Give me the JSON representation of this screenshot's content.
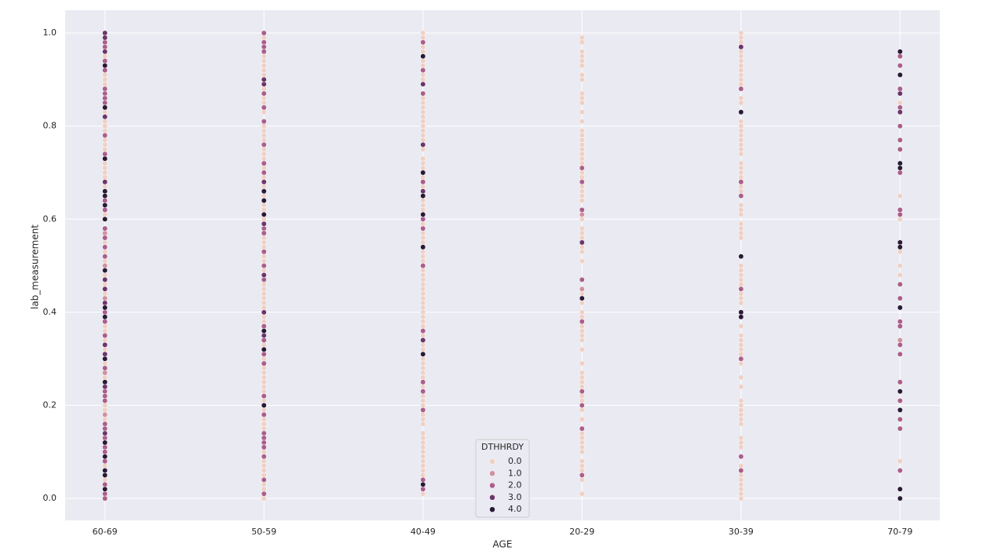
{
  "chart_data": {
    "type": "scatter",
    "x_label": "AGE",
    "y_label": "lab_measurement",
    "categories": [
      "60-69",
      "50-59",
      "40-49",
      "20-29",
      "30-39",
      "70-79"
    ],
    "ylim": [
      -0.047,
      1.049
    ],
    "yticks": [
      {
        "value": 0,
        "label": "0.0"
      },
      {
        "value": 0.2,
        "label": "0.2"
      },
      {
        "value": 0.4,
        "label": "0.4"
      },
      {
        "value": 0.6,
        "label": "0.6"
      },
      {
        "value": 0.8,
        "label": "0.8"
      },
      {
        "value": 1,
        "label": "1.0"
      }
    ],
    "grid": true,
    "legend_title": "DTHHRDY",
    "legend_position": "lower center",
    "series": [
      {
        "name": "0.0",
        "color": "#efd0c4",
        "values": [
          [
            0.95,
            0.91,
            0.9,
            0.89,
            0.83,
            0.81,
            0.8,
            0.79,
            0.77,
            0.76,
            0.75,
            0.72,
            0.71,
            0.7,
            0.69,
            0.67,
            0.61,
            0.55,
            0.53,
            0.51,
            0.48,
            0.46,
            0.44,
            0.37,
            0.36,
            0.34,
            0.32,
            0.29,
            0.26,
            0.2,
            0.19,
            0.18,
            0.17,
            0.07,
            0.04
          ],
          [
            0.99,
            0.95,
            0.94,
            0.93,
            0.92,
            0.91,
            0.88,
            0.86,
            0.85,
            0.83,
            0.8,
            0.79,
            0.78,
            0.77,
            0.75,
            0.74,
            0.73,
            0.71,
            0.69,
            0.67,
            0.65,
            0.63,
            0.62,
            0.6,
            0.56,
            0.55,
            0.54,
            0.52,
            0.51,
            0.49,
            0.46,
            0.45,
            0.44,
            0.43,
            0.42,
            0.41,
            0.39,
            0.38,
            0.33,
            0.3,
            0.28,
            0.27,
            0.26,
            0.25,
            0.24,
            0.23,
            0.21,
            0.19,
            0.17,
            0.16,
            0.15,
            0.1,
            0.08,
            0.07,
            0.06,
            0.05,
            0.03,
            0.02,
            0.0
          ],
          [
            1.0,
            0.99,
            0.97,
            0.96,
            0.94,
            0.93,
            0.91,
            0.9,
            0.86,
            0.85,
            0.84,
            0.83,
            0.82,
            0.81,
            0.8,
            0.79,
            0.78,
            0.77,
            0.75,
            0.73,
            0.72,
            0.71,
            0.69,
            0.67,
            0.64,
            0.63,
            0.62,
            0.59,
            0.57,
            0.56,
            0.55,
            0.53,
            0.52,
            0.51,
            0.49,
            0.48,
            0.47,
            0.46,
            0.45,
            0.44,
            0.43,
            0.42,
            0.41,
            0.4,
            0.39,
            0.38,
            0.37,
            0.35,
            0.33,
            0.32,
            0.3,
            0.29,
            0.28,
            0.27,
            0.26,
            0.24,
            0.22,
            0.21,
            0.2,
            0.18,
            0.17,
            0.16,
            0.14,
            0.13,
            0.12,
            0.11,
            0.1,
            0.09,
            0.08,
            0.07,
            0.06,
            0.05,
            0.01
          ],
          [
            0.99,
            0.98,
            0.96,
            0.95,
            0.94,
            0.93,
            0.91,
            0.9,
            0.87,
            0.86,
            0.85,
            0.83,
            0.81,
            0.79,
            0.78,
            0.77,
            0.76,
            0.75,
            0.74,
            0.73,
            0.72,
            0.7,
            0.69,
            0.67,
            0.66,
            0.65,
            0.64,
            0.6,
            0.58,
            0.57,
            0.56,
            0.54,
            0.53,
            0.51,
            0.44,
            0.42,
            0.4,
            0.39,
            0.37,
            0.36,
            0.35,
            0.34,
            0.32,
            0.29,
            0.27,
            0.26,
            0.25,
            0.24,
            0.22,
            0.21,
            0.19,
            0.17,
            0.14,
            0.13,
            0.12,
            0.11,
            0.1,
            0.08,
            0.07,
            0.06,
            0.04,
            0.01
          ],
          [
            1.0,
            0.99,
            0.98,
            0.96,
            0.95,
            0.94,
            0.93,
            0.92,
            0.91,
            0.9,
            0.89,
            0.86,
            0.85,
            0.81,
            0.8,
            0.79,
            0.78,
            0.77,
            0.76,
            0.75,
            0.74,
            0.72,
            0.71,
            0.7,
            0.69,
            0.67,
            0.66,
            0.63,
            0.62,
            0.61,
            0.59,
            0.58,
            0.57,
            0.56,
            0.5,
            0.49,
            0.48,
            0.47,
            0.46,
            0.44,
            0.43,
            0.42,
            0.37,
            0.35,
            0.34,
            0.33,
            0.32,
            0.31,
            0.29,
            0.26,
            0.24,
            0.21,
            0.2,
            0.19,
            0.18,
            0.17,
            0.16,
            0.13,
            0.12,
            0.11,
            0.07,
            0.05,
            0.04,
            0.03,
            0.02,
            0.01,
            0.0
          ],
          [
            0.85,
            0.65,
            0.6,
            0.53,
            0.5,
            0.48,
            0.08
          ]
        ]
      },
      {
        "name": "1.0",
        "color": "#d0919f",
        "values": [
          [
            0.57,
            0.5,
            0.43,
            0.27,
            0.18
          ],
          [],
          [],
          [
            0.61,
            0.45
          ],
          [],
          [
            0.34
          ]
        ]
      },
      {
        "name": "2.0",
        "color": "#ab5e8a",
        "values": [
          [
            0.98,
            0.97,
            0.94,
            0.92,
            0.88,
            0.87,
            0.86,
            0.85,
            0.78,
            0.74,
            0.64,
            0.62,
            0.58,
            0.56,
            0.54,
            0.52,
            0.4,
            0.38,
            0.35,
            0.28,
            0.23,
            0.22,
            0.21,
            0.16,
            0.15,
            0.13,
            0.11,
            0.1,
            0.08,
            0.03,
            0.01,
            0.0
          ],
          [
            1.0,
            0.98,
            0.97,
            0.96,
            0.87,
            0.84,
            0.81,
            0.76,
            0.72,
            0.7,
            0.58,
            0.57,
            0.53,
            0.5,
            0.47,
            0.37,
            0.34,
            0.31,
            0.29,
            0.22,
            0.18,
            0.14,
            0.13,
            0.12,
            0.11,
            0.09,
            0.04,
            0.01
          ],
          [
            0.98,
            0.92,
            0.87,
            0.68,
            0.6,
            0.58,
            0.5,
            0.36,
            0.25,
            0.23,
            0.19,
            0.04,
            0.02
          ],
          [
            0.71,
            0.68,
            0.62,
            0.47,
            0.38,
            0.23,
            0.2,
            0.15,
            0.05
          ],
          [
            0.88,
            0.68,
            0.65,
            0.45,
            0.3,
            0.09,
            0.06
          ],
          [
            0.95,
            0.93,
            0.88,
            0.84,
            0.8,
            0.77,
            0.75,
            0.7,
            0.62,
            0.61,
            0.46,
            0.43,
            0.38,
            0.37,
            0.33,
            0.31,
            0.25,
            0.21,
            0.17,
            0.15,
            0.06
          ]
        ]
      },
      {
        "name": "3.0",
        "color": "#6c3569",
        "values": [
          [
            1.0,
            0.99,
            0.96,
            0.82,
            0.68,
            0.47,
            0.45,
            0.42,
            0.33,
            0.31,
            0.24,
            0.14
          ],
          [
            0.9,
            0.89,
            0.68,
            0.59,
            0.48,
            0.4,
            0.35
          ],
          [
            0.89,
            0.76,
            0.66,
            0.34
          ],
          [
            0.55
          ],
          [
            0.97
          ],
          [
            0.87,
            0.83
          ]
        ]
      },
      {
        "name": "4.0",
        "color": "#2a1a35",
        "values": [
          [
            0.93,
            0.84,
            0.73,
            0.66,
            0.65,
            0.63,
            0.6,
            0.49,
            0.41,
            0.39,
            0.3,
            0.25,
            0.12,
            0.09,
            0.06,
            0.05,
            0.02
          ],
          [
            0.66,
            0.64,
            0.61,
            0.36,
            0.32,
            0.2
          ],
          [
            0.95,
            0.7,
            0.65,
            0.61,
            0.54,
            0.31,
            0.03
          ],
          [
            0.43
          ],
          [
            0.83,
            0.52,
            0.4,
            0.39
          ],
          [
            0.96,
            0.91,
            0.72,
            0.71,
            0.55,
            0.54,
            0.41,
            0.23,
            0.19,
            0.02,
            0.0
          ]
        ]
      }
    ]
  }
}
